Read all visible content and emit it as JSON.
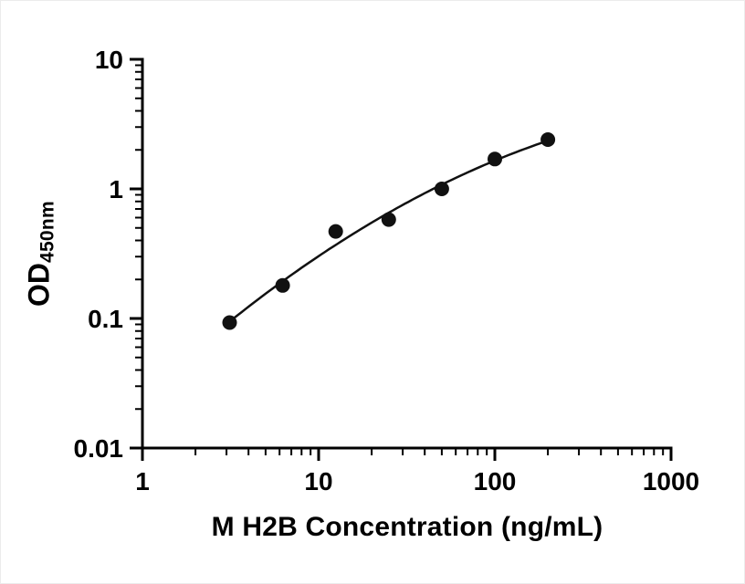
{
  "figure": {
    "background": "#ffffff"
  },
  "chart_data": {
    "type": "scatter",
    "x": [
      3.125,
      6.25,
      12.5,
      25,
      50,
      100,
      200
    ],
    "y": [
      0.093,
      0.18,
      0.47,
      0.58,
      1.0,
      1.7,
      2.4
    ],
    "xlabel": "M H2B Concentration (ng/mL)",
    "ylabel_main": "OD",
    "ylabel_sub": "450nm",
    "x_scale": "log",
    "y_scale": "log",
    "xlim": [
      1,
      1000
    ],
    "ylim": [
      0.01,
      10
    ],
    "x_ticks": [
      1,
      10,
      100,
      1000
    ],
    "y_ticks": [
      0.01,
      0.1,
      1,
      10
    ],
    "grid": false,
    "legend": "none",
    "marker_color": "#111111",
    "line_color": "#111111",
    "axis_color": "#000000",
    "trend": {
      "type": "quadratic-loglog",
      "p": -0.18401,
      "q": 0.77286,
      "r": -0.17426,
      "u0": 1.3979,
      "u_min": 0.4949,
      "u_max": 2.301
    }
  }
}
